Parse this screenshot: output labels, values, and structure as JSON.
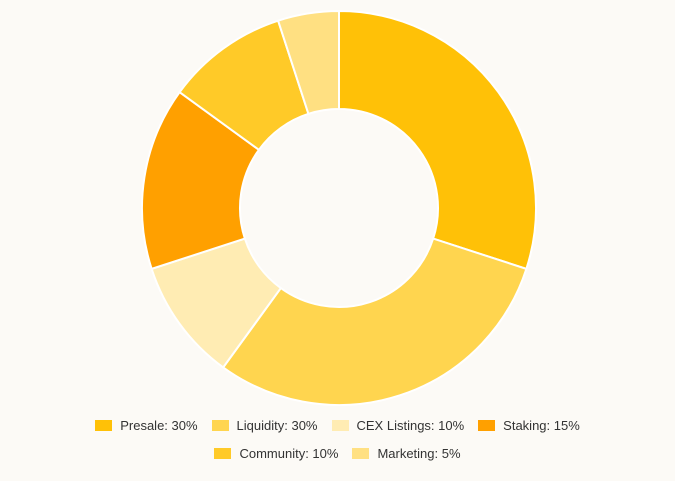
{
  "chart_data": {
    "type": "donut",
    "categories": [
      "Presale: 30%",
      "Liquidity: 30%",
      "CEX Listings: 10%",
      "Staking: 15%",
      "Community: 10%",
      "Marketing: 5%"
    ],
    "values": [
      30,
      30,
      10,
      15,
      10,
      5
    ],
    "colors": [
      "#ffc107",
      "#ffd54f",
      "#ffecb3",
      "#ffa000",
      "#ffca28",
      "#ffe082"
    ],
    "legend": "bottom"
  }
}
